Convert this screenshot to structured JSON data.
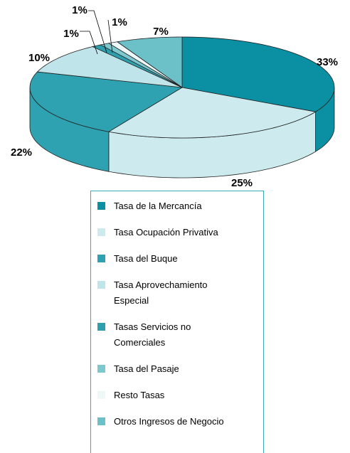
{
  "chart_data": {
    "type": "pie3d",
    "categories": [
      "Tasa de la Mercancía",
      "Tasa Ocupación Privativa",
      "Tasa del Buque",
      "Tasa Aprovechamiento Especial",
      "Tasas Servicios no Comerciales",
      "Tasa del Pasaje",
      "Resto Tasas",
      "Otros Ingresos de Negocio"
    ],
    "values": [
      33,
      25,
      22,
      10,
      1,
      1,
      1,
      7
    ],
    "value_labels": [
      "33%",
      "25%",
      "22%",
      "10%",
      "1%",
      "1%",
      "1%",
      "7%"
    ],
    "colors": [
      "#0a90a2",
      "#cdeaee",
      "#2ea2b0",
      "#bfe4e9",
      "#2f9fad",
      "#7dc8cf",
      "#eef8f9",
      "#6cc0c8"
    ],
    "legend": "bottom"
  }
}
